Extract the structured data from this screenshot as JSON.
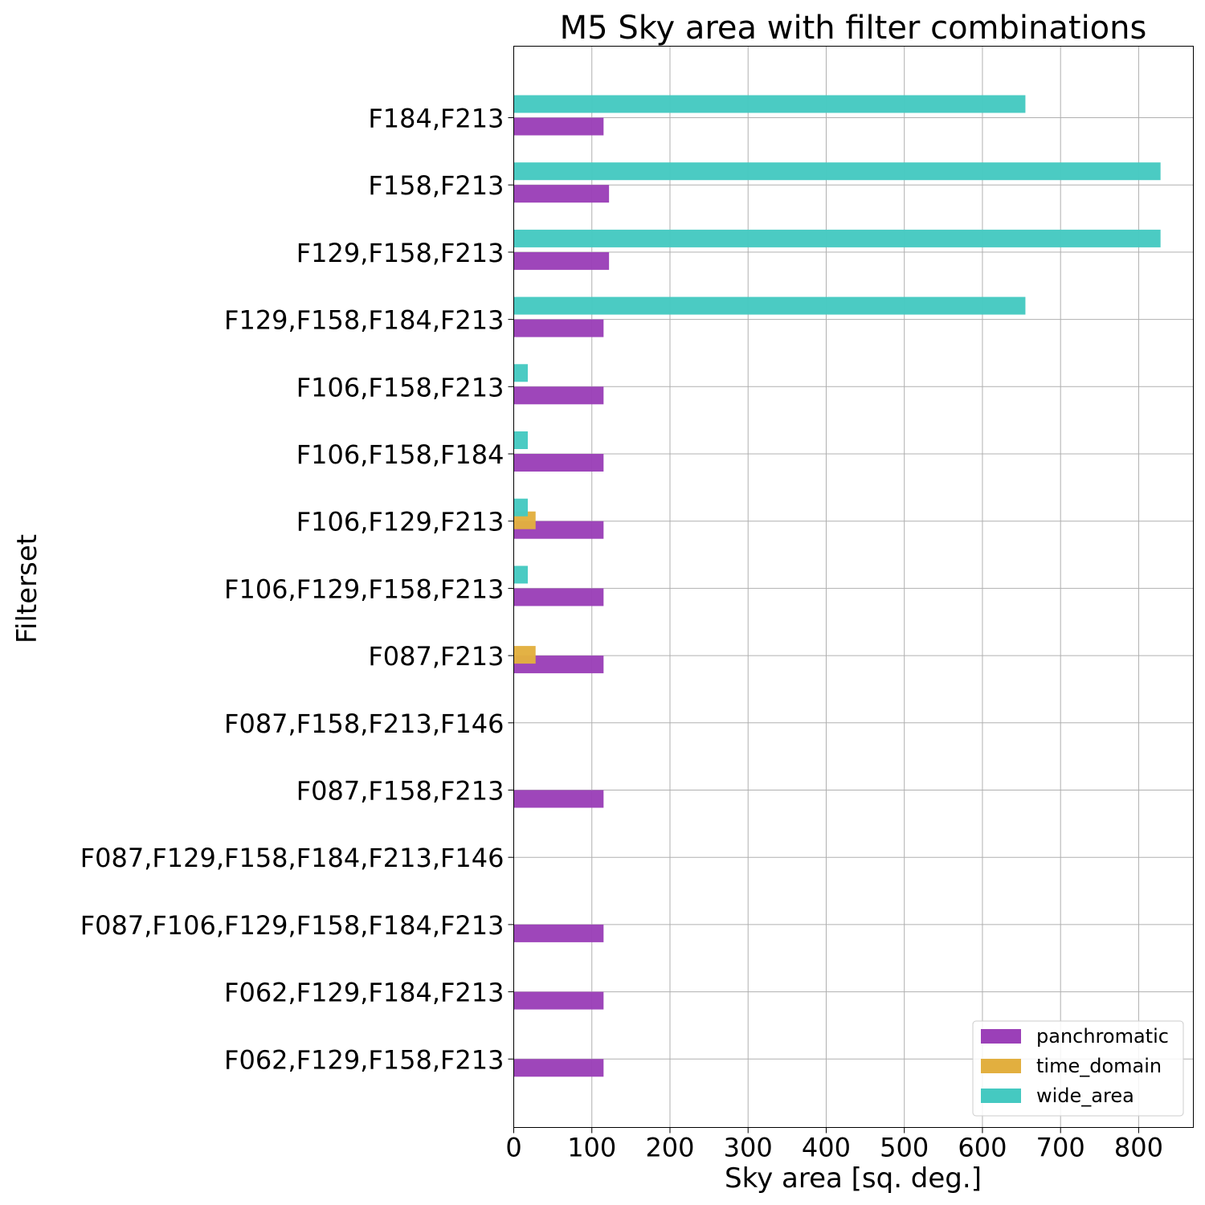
{
  "chart_data": {
    "type": "bar",
    "orientation": "horizontal",
    "title": "M5 Sky area with filter combinations",
    "xlabel": "Sky area [sq. deg.]",
    "ylabel": "Filterset",
    "xlim": [
      0,
      870
    ],
    "xticks": [
      0,
      100,
      200,
      300,
      400,
      500,
      600,
      700,
      800
    ],
    "xtick_labels": [
      "0",
      "100",
      "200",
      "300",
      "400",
      "500",
      "600",
      "700",
      "800"
    ],
    "grid": true,
    "legend_position": "lower-right",
    "categories": [
      "F184,F213",
      "F158,F213",
      "F129,F158,F213",
      "F129,F158,F184,F213",
      "F106,F158,F213",
      "F106,F158,F184",
      "F106,F129,F213",
      "F106,F129,F158,F213",
      "F087,F213",
      "F087,F158,F213,F146",
      "F087,F158,F213",
      "F087,F129,F158,F184,F213,F146",
      "F087,F106,F129,F158,F184,F213",
      "F062,F129,F184,F213",
      "F062,F129,F158,F213"
    ],
    "series": [
      {
        "name": "panchromatic",
        "color": "#9b40b8",
        "values": [
          115,
          122,
          122,
          115,
          115,
          115,
          115,
          115,
          115,
          0,
          115,
          0,
          115,
          115,
          115
        ]
      },
      {
        "name": "time_domain",
        "color": "#e2af3f",
        "values": [
          0,
          0,
          0,
          0,
          0,
          0,
          28,
          0,
          28,
          0,
          0,
          0,
          0,
          0,
          0
        ]
      },
      {
        "name": "wide_area",
        "color": "#45c9c1",
        "values": [
          655,
          828,
          828,
          655,
          18,
          18,
          18,
          18,
          0,
          0,
          0,
          0,
          0,
          0,
          0
        ]
      }
    ]
  }
}
